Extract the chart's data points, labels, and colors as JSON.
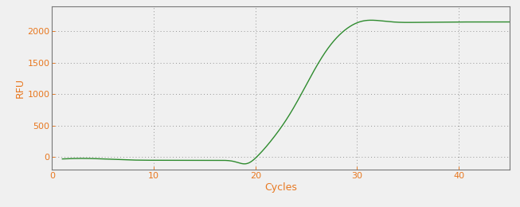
{
  "title": "",
  "xlabel": "Cycles",
  "ylabel": "RFU",
  "xlabel_color": "#e87820",
  "ylabel_color": "#e87820",
  "tick_color": "#e87820",
  "line_color": "#2e8b2e",
  "background_color": "#f0f0f0",
  "plot_bg_color": "#e8e8e8",
  "grid_color": "#555555",
  "xlim": [
    0,
    45
  ],
  "ylim": [
    -200,
    2400
  ],
  "yticks": [
    0,
    500,
    1000,
    1500,
    2000
  ],
  "xticks": [
    0,
    10,
    20,
    30,
    40
  ],
  "figsize": [
    6.53,
    2.6
  ],
  "dpi": 100,
  "x_start": 1,
  "x_end": 45
}
